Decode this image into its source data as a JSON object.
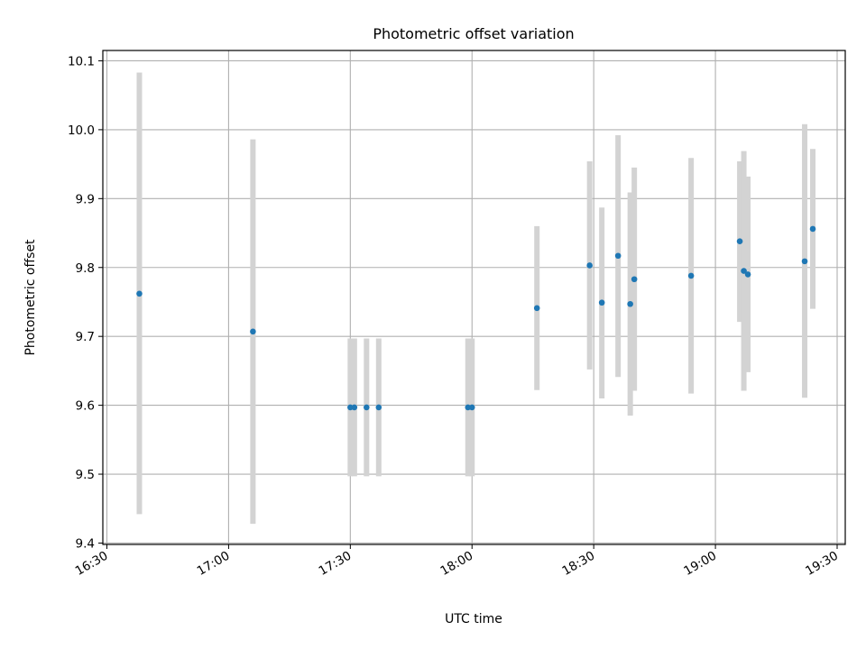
{
  "chart_data": {
    "type": "scatter",
    "title": "Photometric offset variation",
    "xlabel": "UTC time",
    "ylabel": "Photometric offset",
    "x_axis_type": "time",
    "xlim": [
      "16:29",
      "19:32"
    ],
    "ylim": [
      9.398,
      10.115
    ],
    "x_ticks": [
      "16:30",
      "17:00",
      "17:30",
      "18:00",
      "18:30",
      "19:00",
      "19:30"
    ],
    "y_ticks": [
      "9.4",
      "9.5",
      "9.6",
      "9.7",
      "9.8",
      "9.9",
      "10.0",
      "10.1"
    ],
    "grid": true,
    "legend": "none",
    "colors": {
      "point": "#1f77b4",
      "errorbar": "#d3d3d3",
      "grid": "#b0b0b0"
    },
    "points": [
      {
        "x": "16:38",
        "y": 9.762,
        "ylow": 9.442,
        "yhigh": 10.083
      },
      {
        "x": "17:06",
        "y": 9.707,
        "ylow": 9.428,
        "yhigh": 9.986
      },
      {
        "x": "17:30",
        "y": 9.597,
        "ylow": 9.497,
        "yhigh": 9.697
      },
      {
        "x": "17:31",
        "y": 9.597,
        "ylow": 9.497,
        "yhigh": 9.697
      },
      {
        "x": "17:34",
        "y": 9.597,
        "ylow": 9.497,
        "yhigh": 9.697
      },
      {
        "x": "17:37",
        "y": 9.597,
        "ylow": 9.497,
        "yhigh": 9.697
      },
      {
        "x": "17:59",
        "y": 9.597,
        "ylow": 9.497,
        "yhigh": 9.697
      },
      {
        "x": "18:00",
        "y": 9.597,
        "ylow": 9.497,
        "yhigh": 9.697
      },
      {
        "x": "18:16",
        "y": 9.741,
        "ylow": 9.622,
        "yhigh": 9.86
      },
      {
        "x": "18:29",
        "y": 9.803,
        "ylow": 9.652,
        "yhigh": 9.954
      },
      {
        "x": "18:32",
        "y": 9.749,
        "ylow": 9.61,
        "yhigh": 9.887
      },
      {
        "x": "18:36",
        "y": 9.817,
        "ylow": 9.641,
        "yhigh": 9.992
      },
      {
        "x": "18:39",
        "y": 9.747,
        "ylow": 9.585,
        "yhigh": 9.909
      },
      {
        "x": "18:40",
        "y": 9.783,
        "ylow": 9.621,
        "yhigh": 9.945
      },
      {
        "x": "18:54",
        "y": 9.788,
        "ylow": 9.617,
        "yhigh": 9.959
      },
      {
        "x": "19:06",
        "y": 9.838,
        "ylow": 9.721,
        "yhigh": 9.954
      },
      {
        "x": "19:07",
        "y": 9.795,
        "ylow": 9.621,
        "yhigh": 9.969
      },
      {
        "x": "19:08",
        "y": 9.79,
        "ylow": 9.648,
        "yhigh": 9.932
      },
      {
        "x": "19:22",
        "y": 9.809,
        "ylow": 9.611,
        "yhigh": 10.008
      },
      {
        "x": "19:24",
        "y": 9.856,
        "ylow": 9.74,
        "yhigh": 9.972
      }
    ]
  }
}
